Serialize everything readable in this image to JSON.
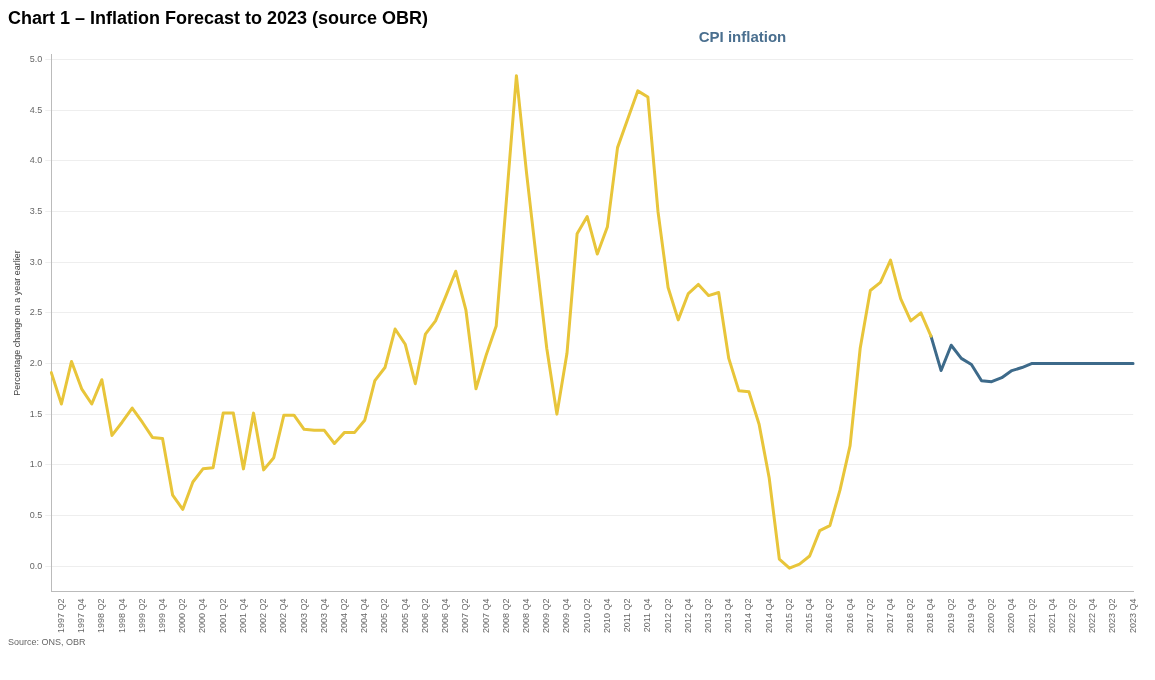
{
  "chart_data": {
    "type": "line",
    "title": "Chart 1 – Inflation Forecast to 2023 (source OBR)",
    "subtitle": "CPI inflation",
    "ylabel": "Percentage change on a year earlier",
    "annotations": [
      "Source: ONS, OBR"
    ],
    "categories": [
      null,
      "1997 Q2",
      null,
      "1997 Q4",
      null,
      "1998 Q2",
      null,
      "1998 Q4",
      null,
      "1999 Q2",
      null,
      "1999 Q4",
      null,
      "2000 Q2",
      null,
      "2000 Q4",
      null,
      "2001 Q2",
      null,
      "2001 Q4",
      null,
      "2002 Q2",
      null,
      "2002 Q4",
      null,
      "2003 Q2",
      null,
      "2003 Q4",
      null,
      "2004 Q2",
      null,
      "2004 Q4",
      null,
      "2005 Q2",
      null,
      "2005 Q4",
      null,
      "2006 Q2",
      null,
      "2006 Q4",
      null,
      "2007 Q2",
      null,
      "2007 Q4",
      null,
      "2008 Q2",
      null,
      "2008 Q4",
      null,
      "2009 Q2",
      null,
      "2009 Q4",
      null,
      "2010 Q2",
      null,
      "2010 Q4",
      null,
      "2011 Q2",
      null,
      "2011 Q4",
      null,
      "2012 Q2",
      null,
      "2012 Q4",
      null,
      "2013 Q2",
      null,
      "2013 Q4",
      null,
      "2014 Q2",
      null,
      "2014 Q4",
      null,
      "2015 Q2",
      null,
      "2015 Q4",
      null,
      "2016 Q2",
      null,
      "2016 Q4",
      null,
      "2017 Q2",
      null,
      "2017 Q4",
      null,
      "2018 Q2",
      null,
      "2018 Q4",
      null,
      "2019 Q2",
      null,
      "2019 Q4",
      null,
      "2020 Q2",
      null,
      "2020 Q4",
      null,
      "2021 Q2",
      null,
      "2021 Q4",
      null,
      "2022 Q2",
      null,
      "2022 Q4",
      null,
      "2023 Q2",
      null,
      "2023 Q4"
    ],
    "series": [
      {
        "color": "#e8c53a",
        "values": [
          1.91,
          1.6,
          2.02,
          1.75,
          1.6,
          1.84,
          1.29,
          1.42,
          1.56,
          1.42,
          1.27,
          1.26,
          0.7,
          0.56,
          0.83,
          0.96,
          0.97,
          1.51,
          1.51,
          0.96,
          1.51,
          0.95,
          1.07,
          1.49,
          1.49,
          1.35,
          1.34,
          1.34,
          1.21,
          1.32,
          1.32,
          1.44,
          1.83,
          1.96,
          2.34,
          2.19,
          1.8,
          2.29,
          2.42,
          2.66,
          2.91,
          2.53,
          1.75,
          2.08,
          2.37,
          3.6,
          4.84,
          3.88,
          3.01,
          2.15,
          1.5,
          2.1,
          3.28,
          3.45,
          3.08,
          3.35,
          4.13,
          4.41,
          4.69,
          4.63,
          3.5,
          2.75,
          2.43,
          2.69,
          2.78,
          2.67,
          2.7,
          2.05,
          1.73,
          1.72,
          1.4,
          0.87,
          0.07,
          -0.02,
          0.02,
          0.1,
          0.35,
          0.4,
          0.75,
          1.19,
          2.15,
          2.72,
          2.8,
          3.02,
          2.64,
          2.42,
          2.5,
          2.27,
          null,
          null,
          null,
          null,
          null,
          null,
          null,
          null,
          null,
          null,
          null,
          null,
          null,
          null,
          null,
          null,
          null,
          null,
          null,
          null
        ]
      },
      {
        "color": "#3d6a8a",
        "values": [
          null,
          null,
          null,
          null,
          null,
          null,
          null,
          null,
          null,
          null,
          null,
          null,
          null,
          null,
          null,
          null,
          null,
          null,
          null,
          null,
          null,
          null,
          null,
          null,
          null,
          null,
          null,
          null,
          null,
          null,
          null,
          null,
          null,
          null,
          null,
          null,
          null,
          null,
          null,
          null,
          null,
          null,
          null,
          null,
          null,
          null,
          null,
          null,
          null,
          null,
          null,
          null,
          null,
          null,
          null,
          null,
          null,
          null,
          null,
          null,
          null,
          null,
          null,
          null,
          null,
          null,
          null,
          null,
          null,
          null,
          null,
          null,
          null,
          null,
          null,
          null,
          null,
          null,
          null,
          null,
          null,
          null,
          null,
          null,
          null,
          null,
          null,
          2.27,
          1.93,
          2.18,
          2.05,
          1.99,
          1.83,
          1.82,
          1.86,
          1.93,
          1.96,
          2.0,
          2.0,
          2.0,
          2.0,
          2.0,
          2.0,
          2.0,
          2.0,
          2.0,
          2.0,
          2.0
        ]
      }
    ],
    "ylim": [
      -0.25,
      5.05
    ],
    "yticks": [
      {
        "value": 0,
        "label": "0.0"
      },
      {
        "value": 0.5,
        "label": "0.5"
      },
      {
        "value": 1,
        "label": "1.0"
      },
      {
        "value": 1.5,
        "label": "1.5"
      },
      {
        "value": 2,
        "label": "2.0"
      },
      {
        "value": 2.5,
        "label": "2.5"
      },
      {
        "value": 3,
        "label": "3.0"
      },
      {
        "value": 3.5,
        "label": "3.5"
      },
      {
        "value": 4,
        "label": "4.0"
      },
      {
        "value": 4.5,
        "label": "4.5"
      },
      {
        "value": 5,
        "label": "5.0"
      }
    ],
    "grid": "y"
  }
}
